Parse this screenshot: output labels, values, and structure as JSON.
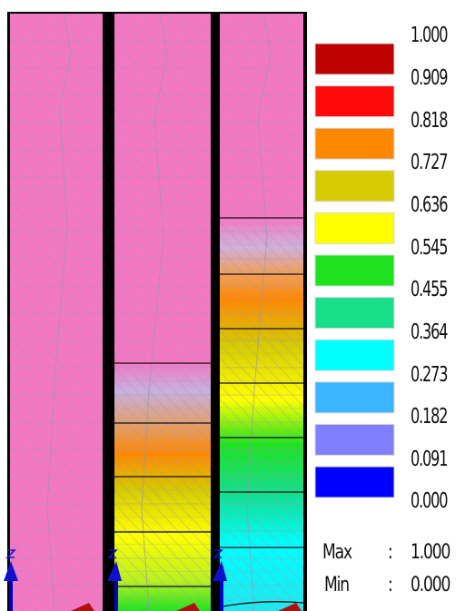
{
  "legend": {
    "swatches": [
      {
        "color": "#bd0000"
      },
      {
        "color": "#ff0a0a"
      },
      {
        "color": "#ff8800"
      },
      {
        "color": "#d5cb00"
      },
      {
        "color": "#ffff00"
      },
      {
        "color": "#1ee31e"
      },
      {
        "color": "#1adf8a"
      },
      {
        "color": "#00ffff"
      },
      {
        "color": "#3db4ff"
      },
      {
        "color": "#8080ff"
      },
      {
        "color": "#0000ff"
      }
    ],
    "labels": [
      "1.000",
      "0.909",
      "0.818",
      "0.727",
      "0.636",
      "0.545",
      "0.455",
      "0.364",
      "0.273",
      "0.182",
      "0.091",
      "0.000"
    ],
    "max_label": "Max",
    "max_sep": ":",
    "max_value": "1.000",
    "min_label": "Min",
    "min_sep": ":",
    "min_value": "0.000"
  },
  "colors": {
    "pink": "#f477c3",
    "mesh": "#8a8aa8",
    "border": "#000000"
  }
}
